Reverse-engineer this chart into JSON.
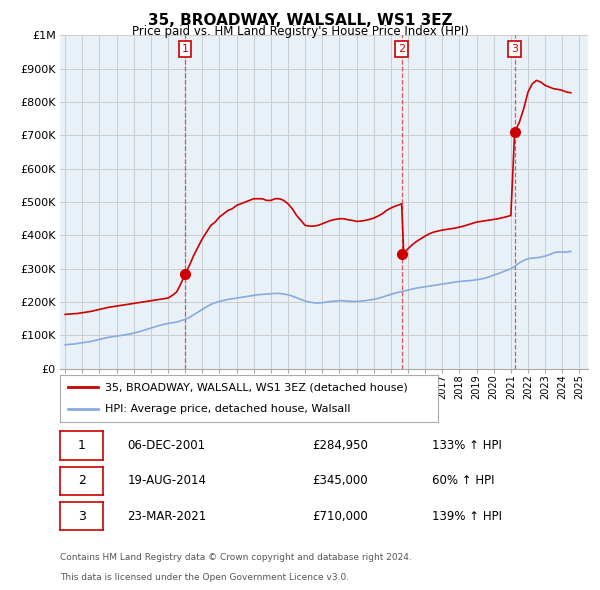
{
  "title": "35, BROADWAY, WALSALL, WS1 3EZ",
  "subtitle": "Price paid vs. HM Land Registry's House Price Index (HPI)",
  "footnote1": "Contains HM Land Registry data © Crown copyright and database right 2024.",
  "footnote2": "This data is licensed under the Open Government Licence v3.0.",
  "legend_red": "35, BROADWAY, WALSALL, WS1 3EZ (detached house)",
  "legend_blue": "HPI: Average price, detached house, Walsall",
  "transactions": [
    {
      "num": 1,
      "date": "06-DEC-2001",
      "price": "£284,950",
      "pct": "133% ↑ HPI"
    },
    {
      "num": 2,
      "date": "19-AUG-2014",
      "price": "£345,000",
      "pct": "60% ↑ HPI"
    },
    {
      "num": 3,
      "date": "23-MAR-2021",
      "price": "£710,000",
      "pct": "139% ↑ HPI"
    }
  ],
  "transaction_years": [
    2002.0,
    2014.63,
    2021.22
  ],
  "transaction_prices": [
    284950,
    345000,
    710000
  ],
  "ylim": [
    0,
    1000000
  ],
  "yticks": [
    0,
    100000,
    200000,
    300000,
    400000,
    500000,
    600000,
    700000,
    800000,
    900000,
    1000000
  ],
  "ytick_labels": [
    "£0",
    "£100K",
    "£200K",
    "£300K",
    "£400K",
    "£500K",
    "£600K",
    "£700K",
    "£800K",
    "£900K",
    "£1M"
  ],
  "xlim_start": 1994.7,
  "xlim_end": 2025.5,
  "red_line_color": "#cc0000",
  "blue_line_color": "#88aadd",
  "dashed_line_color": "#dd4444",
  "grid_color": "#cccccc",
  "chart_bg_color": "#e8f0f8",
  "background_color": "#ffffff",
  "hpi_red_data_x": [
    1995.0,
    1995.25,
    1995.5,
    1995.75,
    1996.0,
    1996.25,
    1996.5,
    1996.75,
    1997.0,
    1997.25,
    1997.5,
    1997.75,
    1998.0,
    1998.25,
    1998.5,
    1998.75,
    1999.0,
    1999.25,
    1999.5,
    1999.75,
    2000.0,
    2000.25,
    2000.5,
    2000.75,
    2001.0,
    2001.25,
    2001.5,
    2001.75,
    2002.0,
    2002.25,
    2002.5,
    2002.75,
    2003.0,
    2003.25,
    2003.5,
    2003.75,
    2004.0,
    2004.25,
    2004.5,
    2004.75,
    2005.0,
    2005.25,
    2005.5,
    2005.75,
    2006.0,
    2006.25,
    2006.5,
    2006.75,
    2007.0,
    2007.25,
    2007.5,
    2007.75,
    2008.0,
    2008.25,
    2008.5,
    2008.75,
    2009.0,
    2009.25,
    2009.5,
    2009.75,
    2010.0,
    2010.25,
    2010.5,
    2010.75,
    2011.0,
    2011.25,
    2011.5,
    2011.75,
    2012.0,
    2012.25,
    2012.5,
    2012.75,
    2013.0,
    2013.25,
    2013.5,
    2013.75,
    2014.0,
    2014.25,
    2014.5,
    2014.63,
    2014.75,
    2015.0,
    2015.25,
    2015.5,
    2015.75,
    2016.0,
    2016.25,
    2016.5,
    2016.75,
    2017.0,
    2017.25,
    2017.5,
    2017.75,
    2018.0,
    2018.25,
    2018.5,
    2018.75,
    2019.0,
    2019.25,
    2019.5,
    2019.75,
    2020.0,
    2020.25,
    2020.5,
    2020.75,
    2021.0,
    2021.22,
    2021.5,
    2021.75,
    2022.0,
    2022.25,
    2022.5,
    2022.75,
    2023.0,
    2023.25,
    2023.5,
    2023.75,
    2024.0,
    2024.25,
    2024.5
  ],
  "hpi_red_data_y": [
    163000,
    164000,
    165000,
    166000,
    168000,
    170000,
    172000,
    175000,
    178000,
    181000,
    184000,
    186000,
    188000,
    190000,
    192000,
    194000,
    196000,
    198000,
    200000,
    202000,
    204000,
    206000,
    208000,
    210000,
    212000,
    220000,
    230000,
    255000,
    284950,
    310000,
    340000,
    365000,
    390000,
    410000,
    430000,
    440000,
    455000,
    465000,
    475000,
    480000,
    490000,
    495000,
    500000,
    505000,
    510000,
    510000,
    510000,
    505000,
    505000,
    510000,
    510000,
    505000,
    495000,
    480000,
    460000,
    445000,
    430000,
    428000,
    428000,
    430000,
    435000,
    440000,
    445000,
    448000,
    450000,
    450000,
    447000,
    445000,
    442000,
    443000,
    445000,
    448000,
    452000,
    458000,
    465000,
    475000,
    482000,
    488000,
    492000,
    495000,
    345000,
    360000,
    372000,
    382000,
    390000,
    398000,
    405000,
    410000,
    413000,
    416000,
    418000,
    420000,
    422000,
    425000,
    428000,
    432000,
    436000,
    440000,
    442000,
    444000,
    446000,
    448000,
    450000,
    453000,
    456000,
    460000,
    710000,
    740000,
    780000,
    830000,
    855000,
    865000,
    860000,
    850000,
    845000,
    840000,
    838000,
    835000,
    830000,
    828000
  ],
  "hpi_blue_data_x": [
    1995.0,
    1995.25,
    1995.5,
    1995.75,
    1996.0,
    1996.25,
    1996.5,
    1996.75,
    1997.0,
    1997.25,
    1997.5,
    1997.75,
    1998.0,
    1998.25,
    1998.5,
    1998.75,
    1999.0,
    1999.25,
    1999.5,
    1999.75,
    2000.0,
    2000.25,
    2000.5,
    2000.75,
    2001.0,
    2001.25,
    2001.5,
    2001.75,
    2002.0,
    2002.25,
    2002.5,
    2002.75,
    2003.0,
    2003.25,
    2003.5,
    2003.75,
    2004.0,
    2004.25,
    2004.5,
    2004.75,
    2005.0,
    2005.25,
    2005.5,
    2005.75,
    2006.0,
    2006.25,
    2006.5,
    2006.75,
    2007.0,
    2007.25,
    2007.5,
    2007.75,
    2008.0,
    2008.25,
    2008.5,
    2008.75,
    2009.0,
    2009.25,
    2009.5,
    2009.75,
    2010.0,
    2010.25,
    2010.5,
    2010.75,
    2011.0,
    2011.25,
    2011.5,
    2011.75,
    2012.0,
    2012.25,
    2012.5,
    2012.75,
    2013.0,
    2013.25,
    2013.5,
    2013.75,
    2014.0,
    2014.25,
    2014.5,
    2014.75,
    2015.0,
    2015.25,
    2015.5,
    2015.75,
    2016.0,
    2016.25,
    2016.5,
    2016.75,
    2017.0,
    2017.25,
    2017.5,
    2017.75,
    2018.0,
    2018.25,
    2018.5,
    2018.75,
    2019.0,
    2019.25,
    2019.5,
    2019.75,
    2020.0,
    2020.25,
    2020.5,
    2020.75,
    2021.0,
    2021.25,
    2021.5,
    2021.75,
    2022.0,
    2022.25,
    2022.5,
    2022.75,
    2023.0,
    2023.25,
    2023.5,
    2023.75,
    2024.0,
    2024.25,
    2024.5
  ],
  "hpi_blue_data_y": [
    72000,
    73000,
    74000,
    76000,
    78000,
    80000,
    82000,
    85000,
    88000,
    91000,
    94000,
    96000,
    98000,
    100000,
    102000,
    104000,
    107000,
    110000,
    114000,
    118000,
    122000,
    126000,
    130000,
    133000,
    136000,
    138000,
    140000,
    144000,
    148000,
    154000,
    162000,
    170000,
    178000,
    186000,
    193000,
    198000,
    202000,
    205000,
    208000,
    210000,
    212000,
    214000,
    216000,
    218000,
    220000,
    222000,
    223000,
    224000,
    225000,
    226000,
    226000,
    224000,
    222000,
    218000,
    213000,
    208000,
    203000,
    200000,
    198000,
    197000,
    198000,
    200000,
    202000,
    203000,
    204000,
    204000,
    203000,
    202000,
    202000,
    203000,
    204000,
    206000,
    208000,
    211000,
    215000,
    219000,
    223000,
    227000,
    230000,
    233000,
    236000,
    239000,
    242000,
    244000,
    246000,
    248000,
    250000,
    252000,
    254000,
    256000,
    258000,
    260000,
    262000,
    263000,
    264000,
    265000,
    267000,
    269000,
    272000,
    276000,
    281000,
    285000,
    290000,
    295000,
    300000,
    308000,
    318000,
    325000,
    330000,
    332000,
    333000,
    335000,
    338000,
    342000,
    348000,
    350000,
    350000,
    350000,
    352000
  ]
}
